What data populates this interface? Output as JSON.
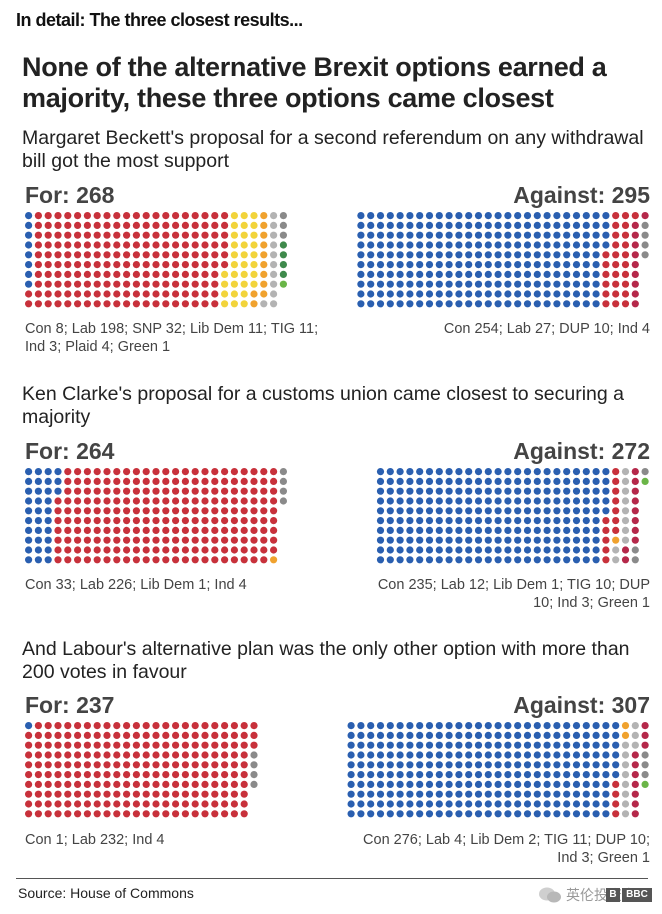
{
  "header": "In detail: The three closest results...",
  "title": "None of the alternative Brexit options earned a majority, these three options came closest",
  "source": "Source: House of Commons",
  "watermark": "英伦投资客",
  "logo_text": "BBC",
  "colors": {
    "Con": "#2a5fb0",
    "Lab": "#c8313b",
    "SNP": "#f2d43b",
    "Lib Dem": "#f0a22e",
    "TIG": "#b3b3b3",
    "Ind": "#8a8a8a",
    "Plaid": "#3f8a4c",
    "Green": "#6ab547",
    "DUP": "#b5284a"
  },
  "chart_data": [
    {
      "type": "waffle",
      "subtitle": "Margaret Beckett's proposal for a second referendum on any withdrawal bill got the most support",
      "for": {
        "label": "For: 268",
        "total": 268,
        "breakdown": "Con 8; Lab 198; SNP 32; Lib Dem 11; TIG 11; Ind 3; Plaid 4; Green 1",
        "parties": [
          {
            "party": "Con",
            "votes": 8
          },
          {
            "party": "Lab",
            "votes": 198
          },
          {
            "party": "SNP",
            "votes": 32
          },
          {
            "party": "Lib Dem",
            "votes": 11
          },
          {
            "party": "TIG",
            "votes": 11
          },
          {
            "party": "Ind",
            "votes": 3
          },
          {
            "party": "Plaid",
            "votes": 4
          },
          {
            "party": "Green",
            "votes": 1
          }
        ]
      },
      "against": {
        "label": "Against: 295",
        "total": 295,
        "breakdown": "Con 254; Lab 27; DUP 10; Ind 4",
        "parties": [
          {
            "party": "Con",
            "votes": 254
          },
          {
            "party": "Lab",
            "votes": 27
          },
          {
            "party": "DUP",
            "votes": 10
          },
          {
            "party": "Ind",
            "votes": 4
          }
        ]
      }
    },
    {
      "type": "waffle",
      "subtitle": "Ken Clarke's proposal for a customs union came closest to securing a majority",
      "for": {
        "label": "For: 264",
        "total": 264,
        "breakdown": "Con 33; Lab 226; Lib Dem 1; Ind 4",
        "parties": [
          {
            "party": "Con",
            "votes": 33
          },
          {
            "party": "Lab",
            "votes": 226
          },
          {
            "party": "Lib Dem",
            "votes": 1
          },
          {
            "party": "Ind",
            "votes": 4
          }
        ]
      },
      "against": {
        "label": "Against: 272",
        "total": 272,
        "breakdown": "Con 235; Lab 12; Lib Dem 1; TIG 10; DUP 10; Ind 3; Green 1",
        "parties": [
          {
            "party": "Con",
            "votes": 235
          },
          {
            "party": "Lab",
            "votes": 12
          },
          {
            "party": "Lib Dem",
            "votes": 1
          },
          {
            "party": "TIG",
            "votes": 10
          },
          {
            "party": "DUP",
            "votes": 10
          },
          {
            "party": "Ind",
            "votes": 3
          },
          {
            "party": "Green",
            "votes": 1
          }
        ]
      }
    },
    {
      "type": "waffle",
      "subtitle": "And Labour's alternative plan was the only other option with more than 200 votes in favour",
      "for": {
        "label": "For: 237",
        "total": 237,
        "breakdown": "Con 1; Lab 232; Ind 4",
        "parties": [
          {
            "party": "Con",
            "votes": 1
          },
          {
            "party": "Lab",
            "votes": 232
          },
          {
            "party": "Ind",
            "votes": 4
          }
        ]
      },
      "against": {
        "label": "Against: 307",
        "total": 307,
        "breakdown": "Con 276; Lab 4; Lib Dem 2; TIG 11; DUP 10; Ind 3; Green 1",
        "parties": [
          {
            "party": "Con",
            "votes": 276
          },
          {
            "party": "Lab",
            "votes": 4
          },
          {
            "party": "Lib Dem",
            "votes": 2
          },
          {
            "party": "TIG",
            "votes": 11
          },
          {
            "party": "DUP",
            "votes": 10
          },
          {
            "party": "Ind",
            "votes": 3
          },
          {
            "party": "Green",
            "votes": 1
          }
        ]
      }
    }
  ]
}
